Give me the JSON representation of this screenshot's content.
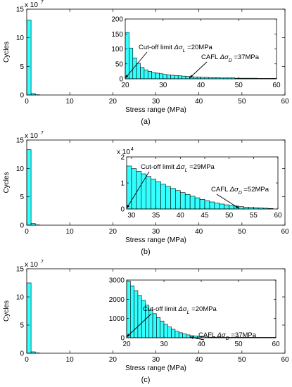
{
  "bar_color": "#33ffff",
  "chart_data": [
    {
      "type": "bar",
      "panel_label": "(a)",
      "ylabel": "Cycles",
      "xlabel": "Stress range (MPa)",
      "exponent_label": "x 10",
      "exponent": "7",
      "xlim": [
        0,
        60
      ],
      "ylim": [
        0,
        15
      ],
      "x_ticks": [
        0,
        10,
        20,
        30,
        40,
        50,
        60
      ],
      "y_ticks": [
        0,
        5,
        10,
        15
      ],
      "bin_width": 1,
      "x": [
        0,
        1,
        2
      ],
      "values": [
        13.1,
        0.25,
        0.05
      ],
      "inset": {
        "xlim": [
          20,
          60
        ],
        "ylim": [
          0,
          200
        ],
        "x_ticks": [
          20,
          30,
          40,
          50,
          60
        ],
        "y_ticks": [
          0,
          50,
          100,
          150,
          200
        ],
        "bin_width": 1,
        "x": [
          20,
          21,
          22,
          23,
          24,
          25,
          26,
          27,
          28,
          29,
          30,
          31,
          32,
          33,
          34,
          35,
          36,
          37,
          38,
          39,
          40,
          41,
          42,
          43,
          44,
          45,
          46,
          47,
          48,
          49,
          50,
          51,
          52,
          53,
          54,
          55,
          56,
          57,
          58,
          59
        ],
        "values": [
          155,
          103,
          70,
          52,
          38,
          30,
          25,
          21,
          19,
          17,
          15,
          13,
          12,
          11,
          10,
          9,
          8,
          7,
          6,
          6,
          5,
          5,
          4,
          4,
          4,
          3,
          3,
          3,
          3,
          2,
          2,
          2,
          2,
          2,
          2,
          1,
          1,
          1,
          1,
          1
        ],
        "annotations": [
          {
            "prefix": "Cut-off limit ",
            "symbol": "Δσ",
            "sub": "L",
            "suffix": " =20MPa",
            "x": 20
          },
          {
            "prefix": "CAFL ",
            "symbol": "Δσ",
            "sub": "D",
            "suffix": " =37MPa",
            "x": 37
          }
        ]
      }
    },
    {
      "type": "bar",
      "panel_label": "(b)",
      "ylabel": "Cycles",
      "xlabel": "Stress range (MPa)",
      "exponent_label": "x 10",
      "exponent": "7",
      "xlim": [
        0,
        60
      ],
      "ylim": [
        0,
        15
      ],
      "x_ticks": [
        0,
        10,
        20,
        30,
        40,
        50,
        60
      ],
      "y_ticks": [
        0,
        5,
        10,
        15
      ],
      "bin_width": 1,
      "x": [
        0,
        1,
        2
      ],
      "values": [
        13.3,
        0.3,
        0.05
      ],
      "inset": {
        "xlim": [
          29,
          60
        ],
        "ylim": [
          0,
          2
        ],
        "x_ticks": [
          30,
          35,
          40,
          45,
          50,
          55,
          60
        ],
        "y_ticks": [
          0,
          1,
          2
        ],
        "exponent_label": "x 10",
        "exponent": "4",
        "bin_width": 1,
        "x": [
          29,
          30,
          31,
          32,
          33,
          34,
          35,
          36,
          37,
          38,
          39,
          40,
          41,
          42,
          43,
          44,
          45,
          46,
          47,
          48,
          49,
          50,
          51,
          52,
          53,
          54,
          55,
          56,
          57,
          58
        ],
        "values": [
          1.65,
          1.55,
          1.45,
          1.35,
          1.25,
          1.15,
          1.05,
          0.95,
          0.87,
          0.79,
          0.71,
          0.63,
          0.56,
          0.49,
          0.43,
          0.37,
          0.32,
          0.27,
          0.23,
          0.19,
          0.16,
          0.13,
          0.11,
          0.09,
          0.07,
          0.06,
          0.05,
          0.04,
          0.03,
          0.02
        ],
        "annotations": [
          {
            "prefix": "Cut-off limit ",
            "symbol": "Δσ",
            "sub": "L",
            "suffix": " =29MPa",
            "x": 29
          },
          {
            "prefix": "CAFL ",
            "symbol": "Δσ",
            "sub": "D",
            "suffix": " =52MPa",
            "x": 52
          }
        ]
      }
    },
    {
      "type": "bar",
      "panel_label": "(c)",
      "ylabel": "Cycles",
      "xlabel": "Stress range (MPa)",
      "exponent_label": "x 10",
      "exponent": "7",
      "xlim": [
        0,
        60
      ],
      "ylim": [
        0,
        15
      ],
      "x_ticks": [
        0,
        10,
        20,
        30,
        40,
        50,
        60
      ],
      "y_ticks": [
        0,
        5,
        10,
        15
      ],
      "bin_width": 1,
      "x": [
        0,
        1,
        2
      ],
      "values": [
        12.5,
        0.25,
        0.05
      ],
      "inset": {
        "xlim": [
          20,
          60
        ],
        "ylim": [
          0,
          3000
        ],
        "x_ticks": [
          20,
          30,
          40,
          50,
          60
        ],
        "y_ticks": [
          0,
          1000,
          2000,
          3000
        ],
        "bin_width": 1,
        "x": [
          20,
          21,
          22,
          23,
          24,
          25,
          26,
          27,
          28,
          29,
          30,
          31,
          32,
          33,
          34,
          35,
          36,
          37,
          38,
          39,
          40,
          41,
          42,
          43,
          44,
          45,
          46,
          47,
          48,
          49,
          50,
          51,
          52,
          53,
          54,
          55,
          56,
          57,
          58,
          59
        ],
        "values": [
          2950,
          2700,
          2450,
          2200,
          1950,
          1700,
          1450,
          1250,
          1050,
          870,
          700,
          560,
          440,
          340,
          260,
          200,
          150,
          110,
          85,
          65,
          50,
          40,
          30,
          25,
          20,
          15,
          12,
          10,
          8,
          6,
          5,
          4,
          3,
          3,
          2,
          2,
          2,
          1,
          1,
          1
        ],
        "annotations": [
          {
            "prefix": "Cut-off limit ",
            "symbol": "Δσ",
            "sub": "L",
            "suffix": " =20MPa",
            "x": 20
          },
          {
            "prefix": "CAFL ",
            "symbol": "Δσ",
            "sub": "D",
            "suffix": " =37MPa",
            "x": 37
          }
        ]
      }
    }
  ]
}
